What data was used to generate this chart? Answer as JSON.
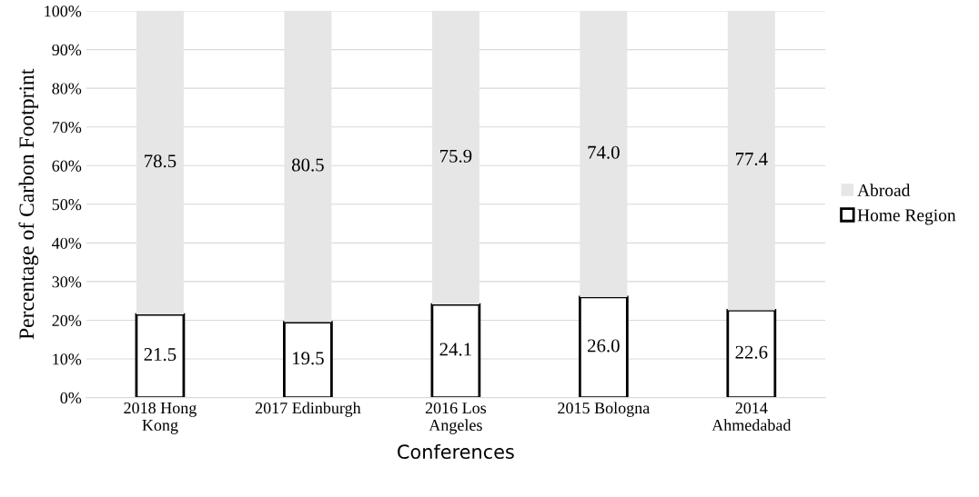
{
  "chart_data": {
    "type": "bar",
    "stacked": true,
    "xlabel": "Conferences",
    "ylabel": "Percentage of Carbon Footprint",
    "categories": [
      "2018 Hong\nKong",
      "2017 Edinburgh",
      "2016 Los\nAngeles",
      "2015 Bologna",
      "2014\nAhmedabad"
    ],
    "series": [
      {
        "name": "Home Region",
        "color": "#ffffff",
        "values": [
          21.5,
          19.5,
          24.1,
          26.0,
          22.6
        ],
        "value_labels": [
          "21.5",
          "19.5",
          "24.1",
          "26.0",
          "22.6"
        ]
      },
      {
        "name": "Abroad",
        "color": "#e7e6e6",
        "values": [
          78.5,
          80.5,
          75.9,
          74.0,
          77.4
        ],
        "value_labels": [
          "78.5",
          "80.5",
          "75.9",
          "74.0",
          "77.4"
        ]
      }
    ],
    "ylim": [
      0,
      100
    ],
    "yticks": [
      {
        "value": 0,
        "label": "0%"
      },
      {
        "value": 10,
        "label": "10%"
      },
      {
        "value": 20,
        "label": "20%"
      },
      {
        "value": 30,
        "label": "30%"
      },
      {
        "value": 40,
        "label": "40%"
      },
      {
        "value": 50,
        "label": "50%"
      },
      {
        "value": 60,
        "label": "60%"
      },
      {
        "value": 70,
        "label": "70%"
      },
      {
        "value": 80,
        "label": "80%"
      },
      {
        "value": 90,
        "label": "90%"
      },
      {
        "value": 100,
        "label": "100%"
      }
    ],
    "grid": "y",
    "legend": "right"
  }
}
